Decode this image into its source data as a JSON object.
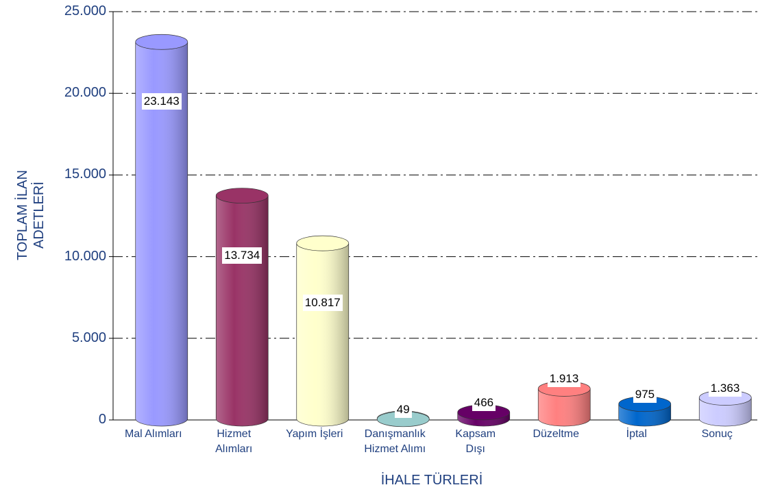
{
  "chart_data": {
    "type": "bar",
    "x_label": "İHALE TÜRLERİ",
    "y_label": "TOPLAM İLAN\nADETLERİ",
    "categories": [
      "Mal Alımları",
      "Hizmet\nAlımları",
      "Yapım İşleri",
      "Danışmanlık\nHizmet Alımı",
      "Kapsam\nDışı",
      "Düzeltme",
      "İptal",
      "Sonuç"
    ],
    "values": [
      23143,
      13734,
      10817,
      49,
      466,
      1913,
      975,
      1363
    ],
    "value_labels": [
      "23.143",
      "13.734",
      "10.817",
      "49",
      "466",
      "1.913",
      "975",
      "1.363"
    ],
    "colors": [
      "#9999ff",
      "#993366",
      "#ffffcc",
      "#99cccc",
      "#660066",
      "#ff8080",
      "#0066cc",
      "#ccccff"
    ],
    "ylim": [
      0,
      25000
    ],
    "yticks": [
      0,
      {
        "value": 5000,
        "label": "5.000"
      },
      {
        "value": 10000,
        "label": "10.000"
      },
      {
        "value": 15000,
        "label": "15.000"
      },
      {
        "value": 20000,
        "label": "20.000"
      },
      {
        "value": 25000,
        "label": "25.000"
      }
    ],
    "grid": true
  }
}
